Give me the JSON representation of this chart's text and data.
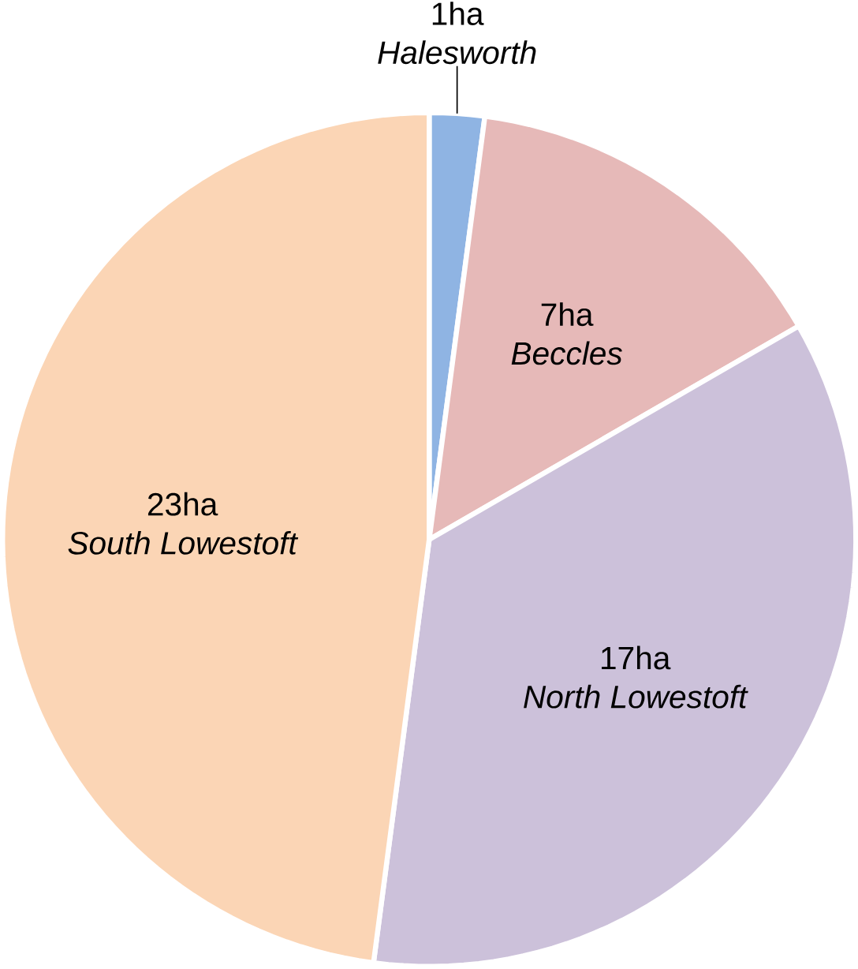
{
  "chart_data": {
    "type": "pie",
    "categories": [
      "Halesworth",
      "Beccles",
      "North Lowestoft",
      "South Lowestoft"
    ],
    "values": [
      1,
      7,
      17,
      23
    ],
    "colors": [
      "#8fb4e3",
      "#e6b9b8",
      "#ccc1da",
      "#fbd5b5"
    ],
    "value_labels": [
      "1ha",
      "7ha",
      "17ha",
      "23ha"
    ]
  }
}
